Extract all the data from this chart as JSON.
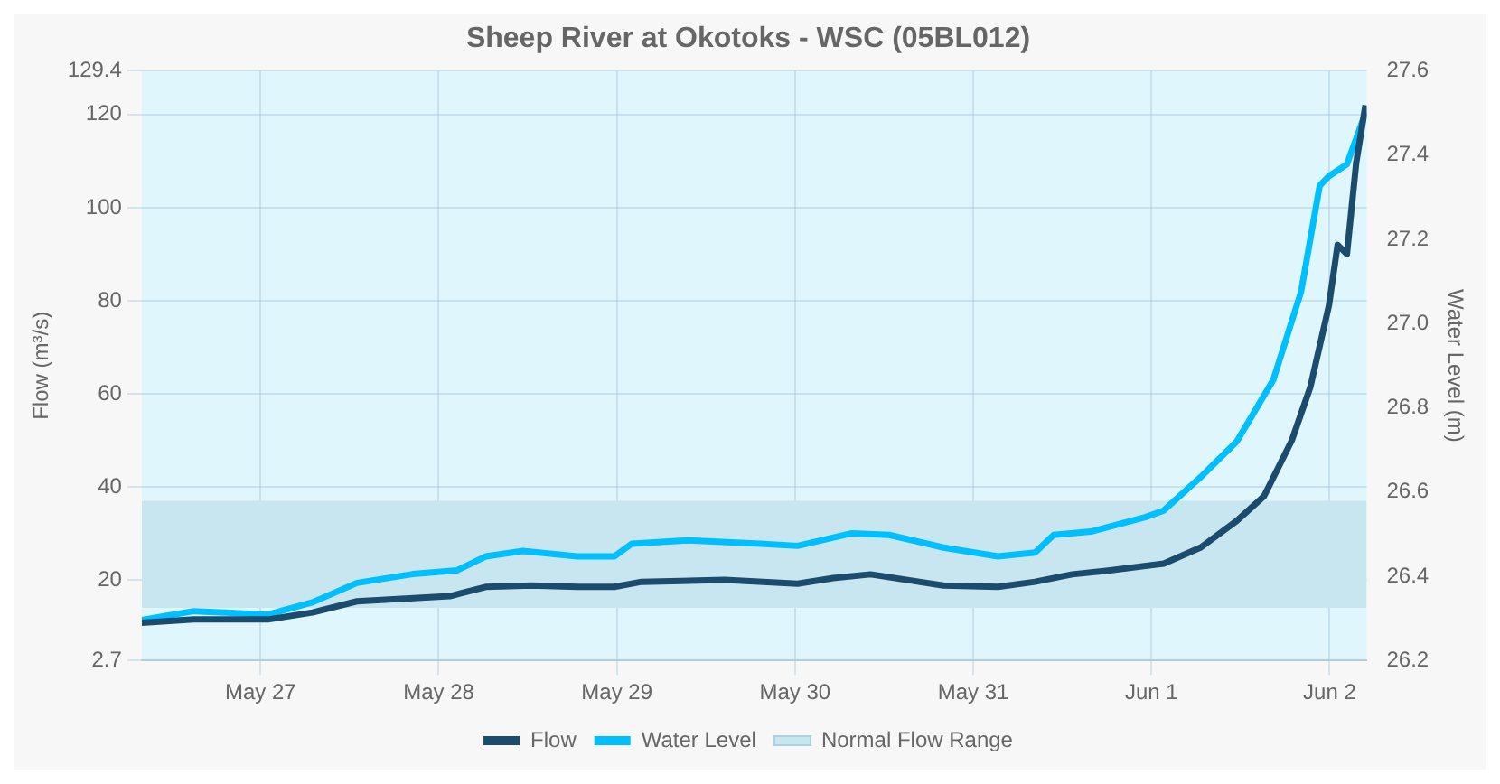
{
  "chart_data": {
    "type": "line",
    "title": "Sheep River at Okotoks - WSC (05BL012)",
    "ylabel": "Flow (m³/s)",
    "y2label": "Water Level (m)",
    "xlim": [
      "--05-26T08:00",
      "--06-02T05:00"
    ],
    "xticks": [
      {
        "value": "--05-27",
        "label": "May 27"
      },
      {
        "value": "--05-28",
        "label": "May 28"
      },
      {
        "value": "--05-29",
        "label": "May 29"
      },
      {
        "value": "--05-30",
        "label": "May 30"
      },
      {
        "value": "--05-31",
        "label": "May 31"
      },
      {
        "value": "--06-01",
        "label": "Jun 1"
      },
      {
        "value": "--06-02",
        "label": "Jun 2"
      }
    ],
    "ylim": [
      2.7,
      129.4
    ],
    "yticks": [
      2.7,
      20,
      40,
      60,
      80,
      100,
      120,
      129.4
    ],
    "y2lim": [
      26.2,
      27.6
    ],
    "y2ticks": [
      26.2,
      26.4,
      26.6,
      26.8,
      {
        "value": 27,
        "label": "27.0"
      },
      27.2,
      27.4,
      27.6
    ],
    "grid": true,
    "legend": "bottom",
    "marker": "none",
    "line_style": "solid",
    "series": [
      {
        "name": "Flow",
        "color": "#1b4b6d",
        "x": [
          "--05-26T08:00",
          "--05-26T15:00",
          "--05-27T01:00",
          "--05-27T07:00",
          "--05-27T13:00",
          "--05-28T01:30",
          "--05-28T06:20",
          "--05-28T12:30",
          "--05-28T18:40",
          "--05-28T23:40",
          "--05-29T03:20",
          "--05-29T14:30",
          "--05-30T00:20",
          "--05-30T05:10",
          "--05-30T10:10",
          "--05-30T20:00",
          "--05-31T03:20",
          "--05-31T08:20",
          "--05-31T13:20",
          "--05-31T18:10",
          "--06-01T01:40",
          "--06-01T06:40",
          "--06-01T11:30",
          "--06-01T15:10",
          "--06-01T18:55",
          "--06-01T21:25",
          "--06-01T23:55",
          "--06-02T01:05",
          "--06-02T02:20",
          "--06-02T03:35",
          "--06-02T04:50"
        ],
        "values": [
          10.8,
          11.5,
          11.5,
          13,
          15.4,
          16.5,
          18.5,
          18.8,
          18.5,
          18.5,
          19.6,
          20,
          19.2,
          20.4,
          21.2,
          18.8,
          18.5,
          19.6,
          21.2,
          22,
          23.5,
          27,
          32.7,
          38,
          50,
          61.5,
          79,
          92,
          90,
          109.6,
          122
        ]
      },
      {
        "name": "Water Level",
        "type": "line",
        "axis": "y2",
        "color": "#00bfff",
        "x": [
          "--05-26T08:00",
          "--05-26T15:00",
          "--05-27T01:00",
          "--05-27T07:00",
          "--05-27T13:00",
          "--05-27T20:30",
          "--05-28T02:30",
          "--05-28T06:20",
          "--05-28T11:20",
          "--05-28T18:40",
          "--05-28T23:40",
          "--05-29T02:00",
          "--05-29T09:30",
          "--05-29T19:20",
          "--05-30T00:20",
          "--05-30T07:40",
          "--05-30T12:40",
          "--05-30T20:00",
          "--05-31T03:20",
          "--05-31T08:20",
          "--05-31T10:50",
          "--05-31T15:50",
          "--05-31T23:10",
          "--06-01T01:40",
          "--06-01T06:40",
          "--06-01T11:30",
          "--06-01T16:25",
          "--06-01T20:10",
          "--06-01T22:40",
          "--06-01T23:55",
          "--06-02T02:20",
          "--06-02T04:50"
        ],
        "values": [
          26.296,
          26.317,
          26.309,
          26.338,
          26.384,
          26.405,
          26.414,
          26.447,
          26.46,
          26.447,
          26.447,
          26.477,
          26.485,
          26.477,
          26.472,
          26.502,
          26.498,
          26.468,
          26.447,
          26.456,
          26.498,
          26.506,
          26.54,
          26.556,
          26.636,
          26.72,
          26.866,
          27.076,
          27.327,
          27.35,
          27.378,
          27.5
        ]
      }
    ],
    "bands": [
      {
        "axis": "y",
        "from": 14,
        "to": 37,
        "label": "Normal Flow Range",
        "color": "#c8e6f0"
      }
    ]
  }
}
